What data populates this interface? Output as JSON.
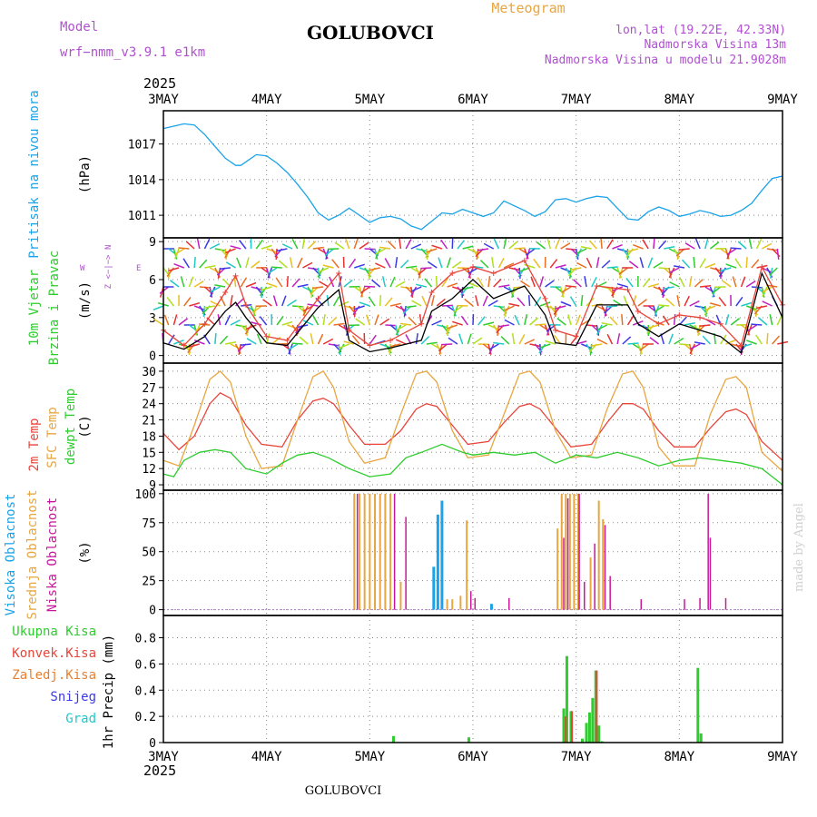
{
  "header": {
    "model_label": "Model",
    "model_value": "wrf−nmm_v3.9.1  e1km",
    "station": "GOLUBOVCI",
    "title": "Meteogram",
    "lonlat": "lon,lat (19.22E, 42.33N)",
    "altitude": "Nadmorska Visina 13m",
    "model_altitude": "Nadmorska Visina u modelu 21.9028m",
    "watermark": "made by Angel",
    "footer_station": "GOLUBOVCI"
  },
  "colors": {
    "pressure": "#1aa3e8",
    "wind_speed": "#000000",
    "wind_gust": "#e8443a",
    "t2m": "#e8443a",
    "sfc": "#e8a640",
    "dewpt": "#2ecc2e",
    "cloud_high": "#1aa3e8",
    "cloud_mid": "#e8a640",
    "cloud_low": "#c8189a",
    "precip_total": "#2ecc2e",
    "precip_conv": "#e8443a",
    "precip_frozen": "#e88030",
    "snow": "#3a3ae8",
    "graupel": "#20c8c8"
  },
  "chart_data": {
    "type": "line",
    "x_axis": {
      "year": "2025",
      "ticks": [
        "3MAY",
        "4MAY",
        "5MAY",
        "6MAY",
        "7MAY",
        "8MAY",
        "9MAY"
      ],
      "range_days": [
        0,
        6
      ]
    },
    "panels": [
      {
        "id": "pressure",
        "ylabel": "Pritisak na nivou mora",
        "unit": "(hPa)",
        "ylim": [
          1009.1,
          1019.8
        ],
        "yticks": [
          1011,
          1014,
          1017
        ],
        "series": [
          {
            "name": "pressure",
            "x": [
              0,
              0.1,
              0.2,
              0.3,
              0.4,
              0.5,
              0.6,
              0.7,
              0.75,
              0.8,
              0.9,
              1.0,
              1.1,
              1.2,
              1.3,
              1.4,
              1.5,
              1.6,
              1.7,
              1.8,
              1.9,
              2.0,
              2.1,
              2.2,
              2.3,
              2.4,
              2.5,
              2.6,
              2.7,
              2.8,
              2.9,
              3.0,
              3.1,
              3.2,
              3.3,
              3.4,
              3.5,
              3.6,
              3.7,
              3.8,
              3.9,
              4.0,
              4.1,
              4.2,
              4.3,
              4.4,
              4.5,
              4.6,
              4.7,
              4.8,
              4.9,
              5.0,
              5.1,
              5.2,
              5.3,
              5.4,
              5.5,
              5.6,
              5.7,
              5.8,
              5.9,
              6.0
            ],
            "values": [
              1018.3,
              1018.5,
              1018.7,
              1018.6,
              1017.8,
              1016.8,
              1015.8,
              1015.2,
              1015.2,
              1015.5,
              1016.1,
              1016.0,
              1015.4,
              1014.6,
              1013.6,
              1012.5,
              1011.2,
              1010.6,
              1011.0,
              1011.6,
              1011.0,
              1010.4,
              1010.8,
              1010.9,
              1010.7,
              1010.1,
              1009.8,
              1010.5,
              1011.2,
              1011.1,
              1011.5,
              1011.2,
              1010.9,
              1011.2,
              1012.2,
              1011.8,
              1011.4,
              1010.9,
              1011.3,
              1012.3,
              1012.4,
              1012.1,
              1012.4,
              1012.6,
              1012.5,
              1011.6,
              1010.7,
              1010.6,
              1011.3,
              1011.7,
              1011.4,
              1010.9,
              1011.1,
              1011.4,
              1011.2,
              1010.9,
              1011.0,
              1011.4,
              1012.0,
              1013.1,
              1014.1,
              1014.3
            ]
          }
        ]
      },
      {
        "id": "wind",
        "ylabel": "10m Vjetar",
        "ylabel2": "Brzina i Pravac",
        "unit": "(m/s)",
        "ylim": [
          -0.6,
          9.3
        ],
        "yticks": [
          0,
          3,
          6,
          9
        ],
        "compass": {
          "n": "N",
          "w": "W",
          "e": "E",
          "s": "S",
          "glyph_top": "Z <−|−> N",
          "glyph_left": "W",
          "glyph_right": "E"
        },
        "series": [
          {
            "name": "speed",
            "x": [
              0,
              0.2,
              0.4,
              0.6,
              0.7,
              0.8,
              1.0,
              1.2,
              1.5,
              1.7,
              1.8,
              2.0,
              2.2,
              2.5,
              2.6,
              2.8,
              3.0,
              3.2,
              3.5,
              3.7,
              3.8,
              4.0,
              4.2,
              4.5,
              4.6,
              4.8,
              5.0,
              5.2,
              5.4,
              5.6,
              5.8,
              6.0
            ],
            "values": [
              1.0,
              0.5,
              1.5,
              3.5,
              4.2,
              3.0,
              1.0,
              0.8,
              3.8,
              5.2,
              1.2,
              0.3,
              0.6,
              1.2,
              3.5,
              4.5,
              6.0,
              4.5,
              5.5,
              3.2,
              1.0,
              0.8,
              4.0,
              4.0,
              2.5,
              1.5,
              2.5,
              2.0,
              1.5,
              0.2,
              6.5,
              3.0
            ]
          },
          {
            "name": "gust",
            "x": [
              0,
              0.2,
              0.4,
              0.6,
              0.7,
              0.8,
              1.0,
              1.2,
              1.5,
              1.7,
              1.8,
              2.0,
              2.2,
              2.5,
              2.6,
              2.8,
              3.0,
              3.2,
              3.5,
              3.7,
              3.8,
              4.0,
              4.2,
              4.5,
              4.6,
              4.8,
              5.0,
              5.2,
              5.4,
              5.6,
              5.8,
              6.0
            ],
            "values": [
              2.0,
              0.8,
              2.5,
              5.0,
              6.3,
              4.0,
              1.5,
              1.2,
              4.5,
              6.5,
              2.0,
              0.8,
              1.2,
              2.5,
              5.0,
              6.5,
              7.0,
              6.5,
              7.5,
              4.5,
              2.0,
              1.5,
              5.5,
              5.2,
              3.5,
              2.5,
              3.2,
              3.0,
              2.5,
              0.8,
              7.0,
              4.0
            ]
          }
        ]
      },
      {
        "id": "temperature",
        "ylabel": "2m Temp",
        "ylabel2": "SFC Temp",
        "ylabel3": "dewpt Temp",
        "unit": "(C)",
        "ylim": [
          8.0,
          31.5
        ],
        "yticks": [
          9,
          12,
          15,
          18,
          21,
          24,
          27,
          30
        ],
        "series": [
          {
            "name": "t2m",
            "x": [
              0,
              0.15,
              0.3,
              0.45,
              0.55,
              0.65,
              0.8,
              0.95,
              1.15,
              1.3,
              1.45,
              1.55,
              1.65,
              1.8,
              1.95,
              2.15,
              2.3,
              2.45,
              2.55,
              2.65,
              2.8,
              2.95,
              3.15,
              3.3,
              3.45,
              3.55,
              3.65,
              3.8,
              3.95,
              4.15,
              4.3,
              4.45,
              4.55,
              4.65,
              4.8,
              4.95,
              5.15,
              5.3,
              5.45,
              5.55,
              5.65,
              5.8,
              6.0
            ],
            "values": [
              18.5,
              15.5,
              18,
              24,
              26,
              25,
              20,
              16.5,
              16,
              21,
              24.5,
              25,
              24,
              20,
              16.5,
              16.5,
              19,
              23,
              24,
              23.5,
              20,
              16.5,
              17,
              20.5,
              23.5,
              24,
              23,
              19.5,
              16,
              16.5,
              20.5,
              24,
              24,
              23,
              19,
              16,
              16,
              19.5,
              22.5,
              23,
              22,
              17,
              13.5
            ]
          },
          {
            "name": "sfc",
            "x": [
              0,
              0.15,
              0.3,
              0.45,
              0.55,
              0.65,
              0.8,
              0.95,
              1.15,
              1.3,
              1.45,
              1.55,
              1.65,
              1.8,
              1.95,
              2.15,
              2.3,
              2.45,
              2.55,
              2.65,
              2.8,
              2.95,
              3.15,
              3.3,
              3.45,
              3.55,
              3.65,
              3.8,
              3.95,
              4.15,
              4.3,
              4.45,
              4.55,
              4.65,
              4.8,
              4.95,
              5.15,
              5.3,
              5.45,
              5.55,
              5.65,
              5.8,
              6.0
            ],
            "values": [
              13.5,
              12.5,
              20,
              28.5,
              30,
              28,
              18,
              12,
              12.5,
              21,
              29,
              30,
              27,
              17,
              13,
              14,
              22,
              29.5,
              30,
              28,
              19,
              14,
              14.5,
              22,
              29.5,
              30,
              28,
              19,
              14,
              14.5,
              23,
              29.5,
              30,
              27,
              16,
              12.5,
              12.5,
              22,
              28.5,
              29,
              27,
              15,
              11.5
            ]
          },
          {
            "name": "dewpt",
            "x": [
              0,
              0.1,
              0.2,
              0.35,
              0.5,
              0.65,
              0.8,
              1.0,
              1.15,
              1.3,
              1.45,
              1.6,
              1.8,
              2.0,
              2.2,
              2.35,
              2.5,
              2.7,
              2.9,
              3.0,
              3.2,
              3.4,
              3.6,
              3.8,
              4.0,
              4.2,
              4.4,
              4.6,
              4.8,
              5.0,
              5.2,
              5.4,
              5.6,
              5.8,
              6.0
            ],
            "values": [
              11,
              10.5,
              13.5,
              15,
              15.5,
              15,
              12,
              11,
              13,
              14.5,
              15,
              14,
              12,
              10.5,
              11,
              14,
              15,
              16.5,
              15,
              14.5,
              15,
              14.5,
              15,
              13,
              14.5,
              14,
              15,
              14,
              12.5,
              13.5,
              14,
              13.5,
              13,
              12,
              9
            ]
          }
        ]
      },
      {
        "id": "cloud",
        "ylabel": "Visoka Oblacnost",
        "ylabel2": "Srednja Oblacnost",
        "ylabel3": "Niska Oblacnost",
        "unit": "(%)",
        "ylim": [
          -5,
          103
        ],
        "yticks": [
          0,
          25,
          50,
          75,
          100
        ],
        "series": [
          {
            "name": "high",
            "x": [
              2.62,
              2.66,
              2.7,
              3.18
            ],
            "values": [
              37,
              82,
              94,
              5
            ]
          },
          {
            "name": "mid",
            "x": [
              1.85,
              1.9,
              1.95,
              2.0,
              2.05,
              2.1,
              2.15,
              2.2,
              2.3,
              2.75,
              2.8,
              2.88,
              2.94,
              3.82,
              3.86,
              3.9,
              3.94,
              3.98,
              4.02,
              4.14,
              4.22,
              4.26
            ],
            "values": [
              100,
              100,
              100,
              100,
              100,
              100,
              100,
              100,
              24,
              9,
              9,
              12,
              77,
              70,
              100,
              100,
              100,
              100,
              100,
              45,
              94,
              78
            ]
          },
          {
            "name": "low",
            "x": [
              1.88,
              2.24,
              2.35,
              2.98,
              3.02,
              3.35,
              3.88,
              3.92,
              4.03,
              4.08,
              4.18,
              4.28,
              4.33,
              4.63,
              5.05,
              5.2,
              5.28,
              5.3,
              5.45
            ],
            "values": [
              100,
              100,
              80,
              16,
              10,
              10,
              62,
              96,
              100,
              24,
              57,
              73,
              29,
              9,
              9,
              10,
              100,
              62,
              10
            ]
          }
        ]
      },
      {
        "id": "precip",
        "ylabel": "1hr Precip (mm)",
        "ylim": [
          0,
          0.97
        ],
        "yticks": [
          0,
          0.2,
          0.4,
          0.6,
          0.8
        ],
        "legend": [
          "Ukupna  Kisa",
          "Konvek.Kisa",
          "Zaledj.Kisa",
          "Snijeg",
          "Grad"
        ],
        "series": [
          {
            "name": "total",
            "x": [
              2.23,
              2.96,
              3.88,
              3.91,
              3.95,
              4.06,
              4.1,
              4.13,
              4.16,
              4.19,
              4.22,
              4.25,
              5.18,
              5.21
            ],
            "values": [
              0.05,
              0.04,
              0.26,
              0.66,
              0.24,
              0.03,
              0.15,
              0.23,
              0.34,
              0.55,
              0.13,
              0.01,
              0.57,
              0.07
            ]
          },
          {
            "name": "convective",
            "x": [
              3.9,
              3.96,
              4.2
            ],
            "values": [
              0.2,
              0.24,
              0.55
            ]
          }
        ]
      }
    ]
  }
}
